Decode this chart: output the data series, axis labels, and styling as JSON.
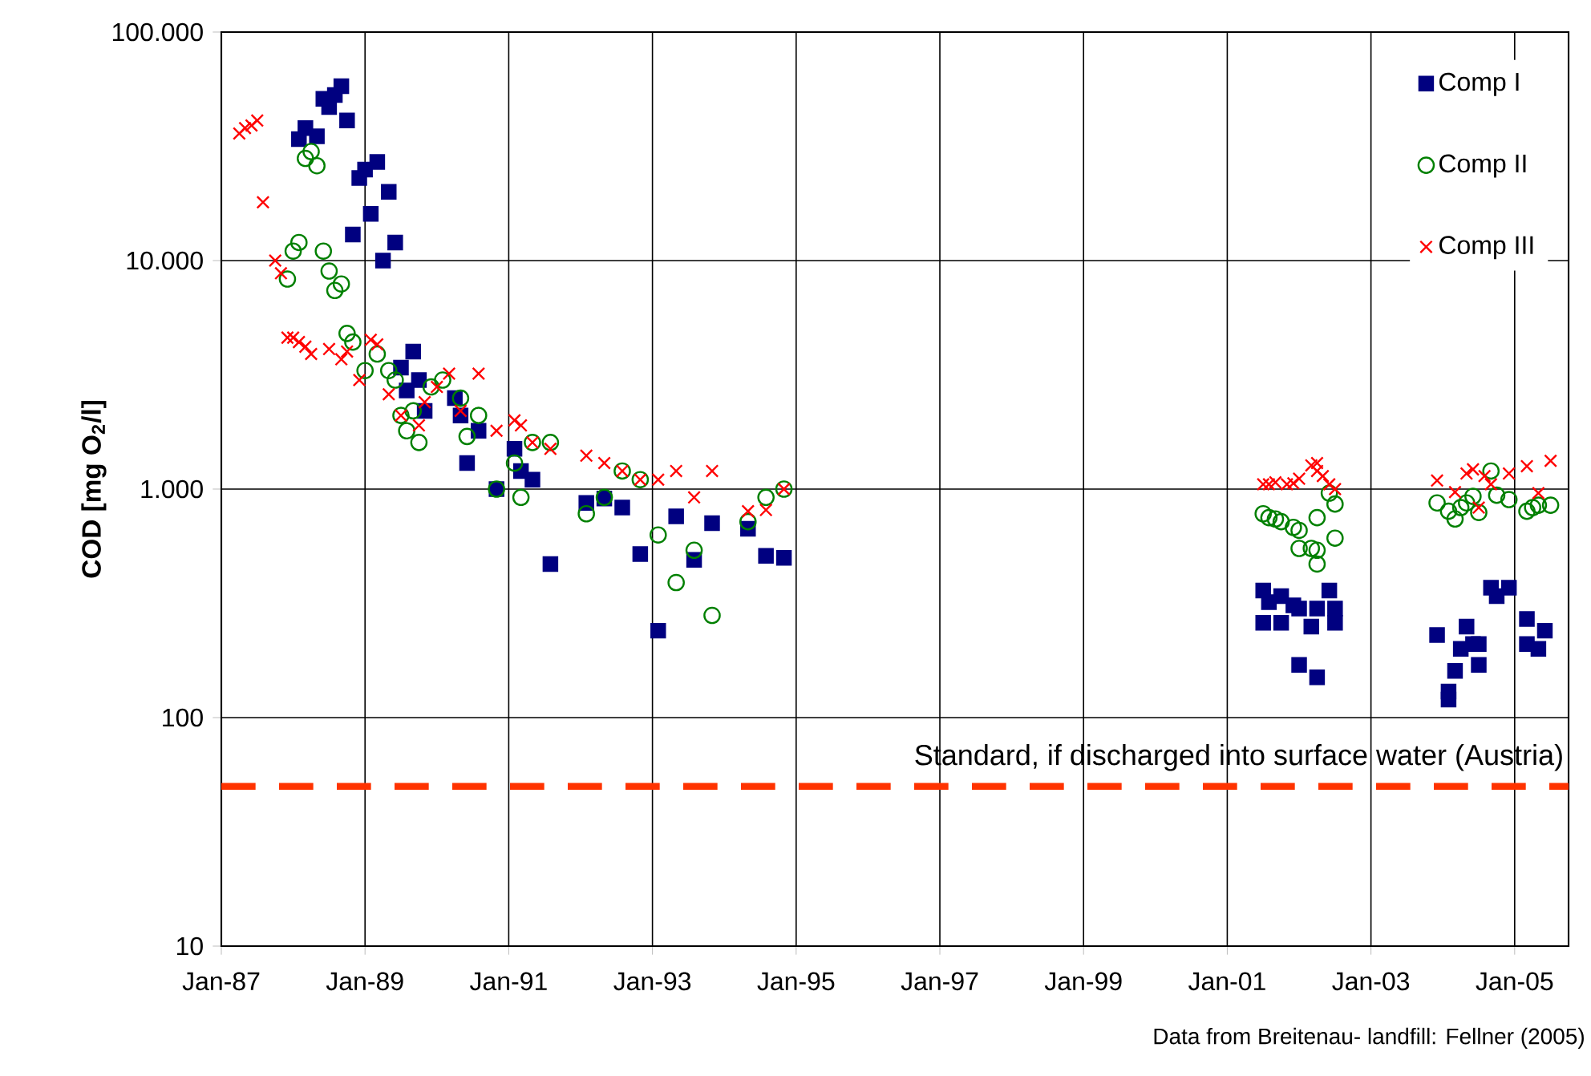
{
  "chart_data": {
    "type": "scatter",
    "ylabel": "COD [mg O$_{2}$/l]",
    "log": "y",
    "grid": true,
    "legend": "top right",
    "xlim": [
      "1987-01",
      "2005-10"
    ],
    "xticks": [
      {
        "value": "1987-01",
        "label": "Jan-87"
      },
      {
        "value": "1989-01",
        "label": "Jan-89"
      },
      {
        "value": "1991-01",
        "label": "Jan-91"
      },
      {
        "value": "1993-01",
        "label": "Jan-93"
      },
      {
        "value": "1995-01",
        "label": "Jan-95"
      },
      {
        "value": "1997-01",
        "label": "Jan-97"
      },
      {
        "value": "1999-01",
        "label": "Jan-99"
      },
      {
        "value": "2001-01",
        "label": "Jan-01"
      },
      {
        "value": "2003-01",
        "label": "Jan-03"
      },
      {
        "value": "2005-01",
        "label": "Jan-05"
      }
    ],
    "ylim": [
      10,
      100000
    ],
    "yticks": [
      10,
      100,
      {
        "value": 1000,
        "label": "1.000"
      },
      {
        "value": 10000,
        "label": "10.000"
      },
      {
        "value": 100000,
        "label": "100.000"
      }
    ],
    "ref_lines": [
      {
        "axis": "y",
        "value": 50,
        "label": "Standard, if discharged into surface water (Austria)",
        "color": "#ff3300",
        "line_style": "dashed"
      }
    ],
    "annotations": [
      "Data from Breitenau- landfill: Fellner (2005)"
    ],
    "series": [
      {
        "name": "Comp I",
        "color": "#000080",
        "marker": "square",
        "x": [
          "1988-02",
          "1988-03",
          "1988-05",
          "1988-06",
          "1988-07",
          "1988-08",
          "1988-09",
          "1988-10",
          "1988-11",
          "1988-12",
          "1989-01",
          "1989-02",
          "1989-03",
          "1989-04",
          "1989-05",
          "1989-06",
          "1989-07",
          "1989-09",
          "1989-08",
          "1989-10",
          "1989-11",
          "1990-04",
          "1990-05",
          "1990-08",
          "1990-06",
          "1990-11",
          "1991-02",
          "1991-03",
          "1991-05",
          "1991-08",
          "1992-02",
          "1992-05",
          "1992-08",
          "1992-11",
          "1993-02",
          "1993-05",
          "1993-08",
          "1993-11",
          "1994-05",
          "1994-08",
          "1994-11",
          "2001-07",
          "2001-07",
          "2001-08",
          "2001-10",
          "2001-10",
          "2001-12",
          "2002-01",
          "2002-01",
          "2002-03",
          "2002-04",
          "2002-04",
          "2002-06",
          "2002-07",
          "2002-07",
          "2003-12",
          "2004-02",
          "2004-02",
          "2004-03",
          "2004-04",
          "2004-05",
          "2004-06",
          "2004-07",
          "2004-07",
          "2004-09",
          "2004-10",
          "2004-12",
          "2005-03",
          "2005-03",
          "2005-05",
          "2005-06"
        ],
        "values": [
          34000,
          38000,
          35000,
          51000,
          47000,
          53000,
          58000,
          41000,
          13000,
          23000,
          25000,
          16000,
          27000,
          10000,
          20000,
          12000,
          3400,
          4000,
          2700,
          3000,
          2200,
          2500,
          2100,
          1800,
          1300,
          1000,
          1500,
          1200,
          1100,
          470,
          870,
          910,
          830,
          520,
          240,
          760,
          490,
          710,
          670,
          510,
          500,
          260,
          360,
          320,
          340,
          260,
          310,
          170,
          300,
          250,
          150,
          300,
          360,
          260,
          300,
          230,
          120,
          130,
          160,
          200,
          250,
          210,
          170,
          210,
          370,
          340,
          370,
          270,
          210,
          200,
          240
        ]
      },
      {
        "name": "Comp II",
        "color": "#008000",
        "marker": "circle",
        "x": [
          "1987-12",
          "1988-01",
          "1988-02",
          "1988-03",
          "1988-04",
          "1988-05",
          "1988-06",
          "1988-07",
          "1988-08",
          "1988-09",
          "1988-10",
          "1988-11",
          "1989-01",
          "1989-03",
          "1989-05",
          "1989-06",
          "1989-07",
          "1989-08",
          "1989-09",
          "1989-10",
          "1989-12",
          "1990-02",
          "1990-05",
          "1990-06",
          "1990-08",
          "1990-11",
          "1991-02",
          "1991-03",
          "1991-05",
          "1991-08",
          "1992-02",
          "1992-05",
          "1992-08",
          "1992-11",
          "1993-02",
          "1993-05",
          "1993-08",
          "1993-11",
          "1994-05",
          "1994-08",
          "1994-11",
          "2001-07",
          "2001-08",
          "2001-09",
          "2001-10",
          "2001-12",
          "2002-01",
          "2002-01",
          "2002-03",
          "2002-04",
          "2002-04",
          "2002-04",
          "2002-06",
          "2002-07",
          "2002-07",
          "2003-12",
          "2004-02",
          "2004-03",
          "2004-04",
          "2004-05",
          "2004-06",
          "2004-07",
          "2004-09",
          "2004-10",
          "2004-12",
          "2005-03",
          "2005-04",
          "2005-05",
          "2005-07"
        ],
        "values": [
          8300,
          11000,
          12000,
          28000,
          30000,
          26000,
          11000,
          9000,
          7400,
          7900,
          4800,
          4400,
          3300,
          3900,
          3300,
          3000,
          2100,
          1800,
          2200,
          1600,
          2800,
          3000,
          2500,
          1700,
          2100,
          1000,
          1300,
          920,
          1600,
          1600,
          780,
          920,
          1200,
          1100,
          630,
          390,
          540,
          280,
          720,
          920,
          1000,
          780,
          750,
          740,
          720,
          680,
          660,
          550,
          550,
          540,
          470,
          750,
          960,
          610,
          860,
          870,
          800,
          740,
          830,
          870,
          930,
          790,
          1200,
          940,
          900,
          800,
          830,
          850,
          850
        ]
      },
      {
        "name": "Comp III",
        "color": "#ff0000",
        "marker": "cross",
        "x": [
          "1987-04",
          "1987-05",
          "1987-06",
          "1987-07",
          "1987-08",
          "1987-10",
          "1987-11",
          "1987-12",
          "1988-01",
          "1988-02",
          "1988-03",
          "1988-04",
          "1988-07",
          "1988-09",
          "1988-10",
          "1988-12",
          "1989-02",
          "1989-03",
          "1989-05",
          "1989-07",
          "1989-10",
          "1989-11",
          "1990-01",
          "1990-03",
          "1990-05",
          "1990-08",
          "1990-11",
          "1991-02",
          "1991-03",
          "1991-05",
          "1991-08",
          "1992-02",
          "1992-05",
          "1992-08",
          "1992-11",
          "1993-02",
          "1993-05",
          "1993-08",
          "1993-11",
          "1994-05",
          "1994-08",
          "1994-11",
          "2001-07",
          "2001-08",
          "2001-09",
          "2001-11",
          "2001-12",
          "2002-01",
          "2002-03",
          "2002-04",
          "2002-04",
          "2002-05",
          "2002-06",
          "2002-07",
          "2003-12",
          "2004-03",
          "2004-05",
          "2004-06",
          "2004-07",
          "2004-08",
          "2004-09",
          "2004-12",
          "2005-03",
          "2005-05",
          "2005-07"
        ],
        "values": [
          36000,
          38000,
          39000,
          41000,
          18000,
          10000,
          8800,
          4600,
          4600,
          4400,
          4200,
          3900,
          4100,
          3700,
          4000,
          3000,
          4500,
          4300,
          2600,
          2100,
          1900,
          2400,
          2800,
          3200,
          2200,
          3200,
          1800,
          2000,
          1900,
          1600,
          1500,
          1400,
          1300,
          1200,
          1100,
          1100,
          1200,
          920,
          1200,
          800,
          810,
          1000,
          1050,
          1050,
          1070,
          1050,
          1060,
          1110,
          1270,
          1300,
          1200,
          1140,
          1050,
          1000,
          1090,
          970,
          1170,
          1220,
          830,
          1140,
          1050,
          1170,
          1260,
          960,
          1330
        ]
      }
    ]
  }
}
